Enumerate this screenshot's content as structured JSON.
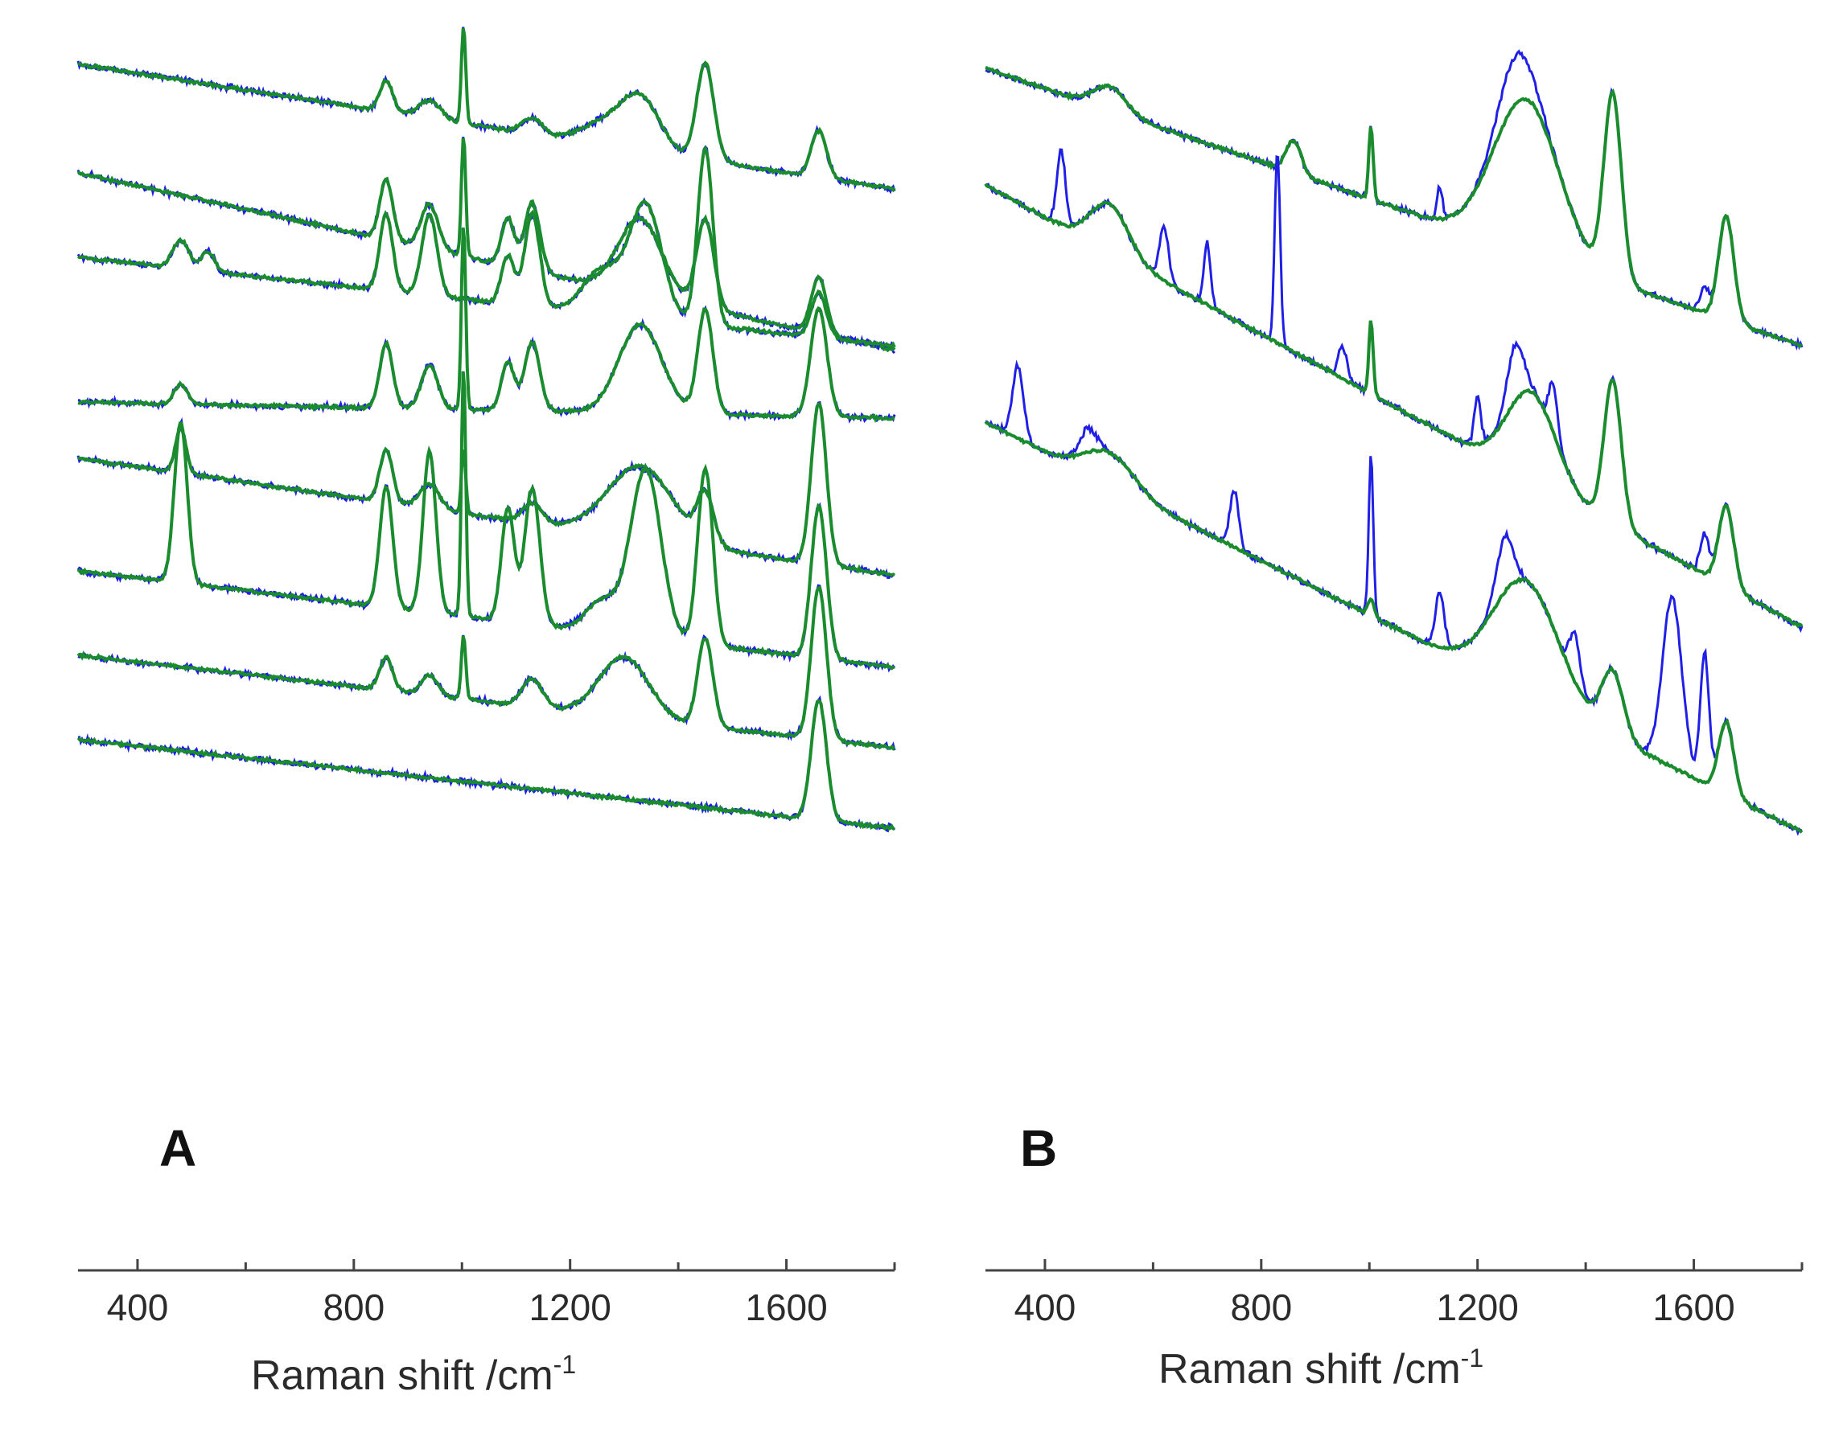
{
  "chart_data": [
    {
      "panel": "A",
      "type": "line",
      "panel_label": "A",
      "xlabel": "Raman shift /cm",
      "xlabel_sup": "-1",
      "xlim": [
        290,
        1800
      ],
      "ticks": [
        400,
        800,
        1200,
        1600
      ],
      "tick_labels": [
        "400",
        "800",
        "1200",
        "1600"
      ],
      "y_scale": "arbitrary, vertically offset traces",
      "line_colors": {
        "measured": "#1f1fe6",
        "fit": "#1a8c2e"
      },
      "spectra": [
        {
          "bl_start": 80,
          "bl_end": 235,
          "peaks": [
            [
              860,
              38,
              12
            ],
            [
              940,
              22,
              20
            ],
            [
              1003,
              120,
              4
            ],
            [
              1130,
              20,
              18
            ],
            [
              1260,
              25,
              40
            ],
            [
              1330,
              65,
              35
            ],
            [
              1450,
              120,
              16
            ],
            [
              1660,
              58,
              14
            ]
          ]
        },
        {
          "bl_start": 215,
          "bl_end": 435,
          "peaks": [
            [
              860,
              75,
              12
            ],
            [
              940,
              55,
              16
            ],
            [
              1003,
              150,
              4
            ],
            [
              1085,
              60,
              12
            ],
            [
              1130,
              85,
              14
            ],
            [
              1330,
              95,
              40
            ],
            [
              1450,
              110,
              16
            ],
            [
              1660,
              70,
              14
            ]
          ]
        },
        {
          "bl_start": 320,
          "bl_end": 430,
          "peaks": [
            [
              480,
              35,
              15
            ],
            [
              530,
              25,
              12
            ],
            [
              860,
              95,
              12
            ],
            [
              940,
              100,
              14
            ],
            [
              1085,
              60,
              12
            ],
            [
              1130,
              115,
              14
            ],
            [
              1260,
              55,
              35
            ],
            [
              1340,
              140,
              30
            ],
            [
              1450,
              220,
              14
            ],
            [
              1660,
              55,
              14
            ]
          ]
        },
        {
          "bl_start": 500,
          "bl_end": 520,
          "peaks": [
            [
              480,
              25,
              12
            ],
            [
              860,
              80,
              12
            ],
            [
              940,
              55,
              15
            ],
            [
              1003,
              230,
              4
            ],
            [
              1085,
              60,
              12
            ],
            [
              1130,
              85,
              14
            ],
            [
              1330,
              110,
              40
            ],
            [
              1450,
              130,
              14
            ],
            [
              1660,
              135,
              15
            ]
          ]
        },
        {
          "bl_start": 570,
          "bl_end": 715,
          "peaks": [
            [
              480,
              55,
              10
            ],
            [
              860,
              65,
              12
            ],
            [
              940,
              30,
              18
            ],
            [
              1003,
              80,
              4
            ],
            [
              1130,
              25,
              18
            ],
            [
              1330,
              90,
              60
            ],
            [
              1450,
              60,
              15
            ],
            [
              1660,
              200,
              14
            ]
          ]
        },
        {
          "bl_start": 710,
          "bl_end": 830,
          "peaks": [
            [
              480,
              200,
              12
            ],
            [
              860,
              150,
              12
            ],
            [
              940,
              200,
              12
            ],
            [
              1003,
              310,
              4
            ],
            [
              1085,
              140,
              12
            ],
            [
              1130,
              170,
              14
            ],
            [
              1260,
              40,
              30
            ],
            [
              1340,
              210,
              28
            ],
            [
              1450,
              220,
              14
            ],
            [
              1660,
              190,
              14
            ]
          ]
        },
        {
          "bl_start": 815,
          "bl_end": 930,
          "peaks": [
            [
              860,
              40,
              12
            ],
            [
              940,
              25,
              15
            ],
            [
              1003,
              80,
              4
            ],
            [
              1130,
              35,
              18
            ],
            [
              1300,
              75,
              45
            ],
            [
              1450,
              110,
              14
            ],
            [
              1660,
              190,
              14
            ]
          ]
        },
        {
          "bl_start": 920,
          "bl_end": 1030,
          "peaks": [
            [
              1660,
              150,
              14
            ]
          ]
        }
      ]
    },
    {
      "panel": "B",
      "type": "line",
      "panel_label": "B",
      "xlabel": "Raman shift /cm",
      "xlabel_sup": "-1",
      "xlim": [
        290,
        1800
      ],
      "ticks": [
        400,
        800,
        1200,
        1600
      ],
      "tick_labels": [
        "400",
        "800",
        "1200",
        "1600"
      ],
      "y_scale": "arbitrary, vertically offset traces",
      "line_colors": {
        "measured": "#1f1fe6",
        "fit": "#1a8c2e"
      },
      "spectra": [
        {
          "bl_start": 85,
          "bl_end": 430,
          "peaks": [
            [
              520,
              30,
              30
            ],
            [
              860,
              40,
              14
            ],
            [
              1003,
              90,
              4
            ],
            [
              1290,
              190,
              60
            ],
            [
              1450,
              230,
              16
            ],
            [
              1660,
              130,
              14
            ]
          ],
          "blue_peaks": [
            [
              1130,
              40,
              5
            ],
            [
              1270,
              60,
              30
            ],
            [
              1620,
              30,
              8
            ]
          ]
        },
        {
          "bl_start": 230,
          "bl_end": 780,
          "peaks": [
            [
              520,
              60,
              35
            ],
            [
              1003,
              90,
              4
            ],
            [
              1300,
              110,
              45
            ],
            [
              1450,
              180,
              16
            ],
            [
              1660,
              100,
              14
            ]
          ],
          "blue_peaks": [
            [
              430,
              90,
              8
            ],
            [
              620,
              70,
              8
            ],
            [
              700,
              80,
              6
            ],
            [
              830,
              240,
              5
            ],
            [
              950,
              40,
              8
            ],
            [
              1200,
              60,
              6
            ],
            [
              1270,
              70,
              15
            ],
            [
              1340,
              60,
              8
            ],
            [
              1620,
              50,
              8
            ]
          ]
        },
        {
          "bl_start": 525,
          "bl_end": 1035,
          "peaks": [
            [
              520,
              40,
              45
            ],
            [
              1003,
              20,
              6
            ],
            [
              1290,
              140,
              60
            ],
            [
              1450,
              80,
              20
            ],
            [
              1660,
              90,
              14
            ]
          ],
          "blue_peaks": [
            [
              350,
              90,
              10
            ],
            [
              480,
              30,
              15
            ],
            [
              750,
              70,
              8
            ],
            [
              1003,
              180,
              4
            ],
            [
              1130,
              70,
              8
            ],
            [
              1250,
              70,
              15
            ],
            [
              1380,
              60,
              10
            ],
            [
              1560,
              210,
              18
            ],
            [
              1620,
              160,
              8
            ]
          ]
        }
      ]
    }
  ]
}
